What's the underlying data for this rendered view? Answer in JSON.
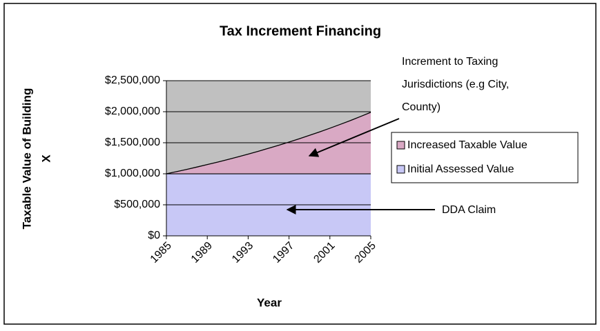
{
  "chart_data": {
    "type": "stacked_area",
    "title": "Tax Increment Financing",
    "x_label": "Year",
    "y_label": [
      "Taxable Value of Building",
      "X"
    ],
    "categories": [
      "1985",
      null,
      null,
      null,
      "1989",
      null,
      null,
      null,
      "1993",
      null,
      null,
      null,
      "1997",
      null,
      null,
      null,
      "2001",
      null,
      null,
      null,
      "2005"
    ],
    "series": [
      {
        "name": "Initial Assessed Value",
        "color": "#c8c8f6",
        "values": [
          1000000,
          1000000,
          1000000,
          1000000,
          1000000,
          1000000,
          1000000,
          1000000,
          1000000,
          1000000,
          1000000,
          1000000,
          1000000,
          1000000,
          1000000,
          1000000,
          1000000,
          1000000,
          1000000,
          1000000,
          1000000
        ]
      },
      {
        "name": "Increased Taxable Value",
        "color": "#d9a9c4",
        "values": [
          0,
          35000,
          71000,
          109000,
          148000,
          188000,
          229000,
          272000,
          317000,
          363000,
          411000,
          460000,
          511000,
          564000,
          619000,
          675000,
          734000,
          795000,
          857000,
          923000,
          990000
        ]
      }
    ],
    "ylim": [
      0,
      2500000
    ],
    "yticks": [
      {
        "value": 0,
        "label": "$0"
      },
      {
        "value": 500000,
        "label": "$500,000"
      },
      {
        "value": 1000000,
        "label": "$1,000,000"
      },
      {
        "value": 1500000,
        "label": "$1,500,000"
      },
      {
        "value": 2000000,
        "label": "$2,000,000"
      },
      {
        "value": 2500000,
        "label": "$2,500,000"
      }
    ],
    "grid": true,
    "plot_background": "#c0c0c0",
    "legend": "right",
    "annotations": [
      {
        "lines": [
          "Increment to Taxing",
          "Jurisdictions (e.g City,",
          "County)"
        ]
      },
      {
        "lines": [
          "DDA Claim"
        ]
      }
    ]
  }
}
